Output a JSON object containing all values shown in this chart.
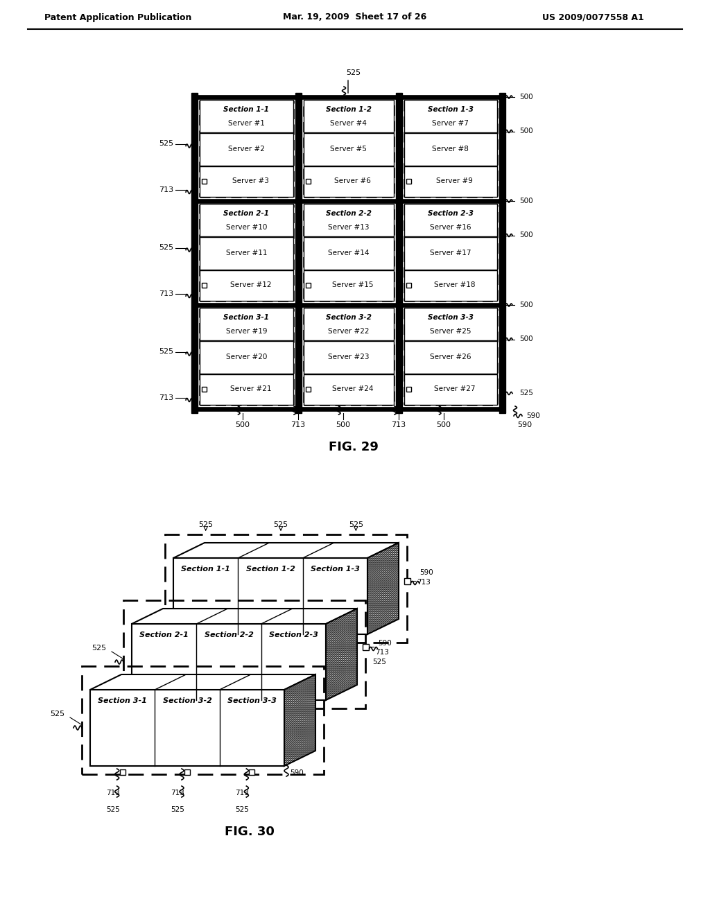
{
  "header_left": "Patent Application Publication",
  "header_mid": "Mar. 19, 2009  Sheet 17 of 26",
  "header_right": "US 2009/0077558 A1",
  "fig29_caption": "FIG. 29",
  "fig30_caption": "FIG. 30",
  "bg_color": "#ffffff",
  "fig29": {
    "sections": [
      {
        "name": "Section 1-1",
        "servers": [
          "Server #1",
          "Server #2",
          "Server #3"
        ],
        "col": 0,
        "row": 0
      },
      {
        "name": "Section 1-2",
        "servers": [
          "Server #4",
          "Server #5",
          "Server #6"
        ],
        "col": 1,
        "row": 0
      },
      {
        "name": "Section 1-3",
        "servers": [
          "Server #7",
          "Server #8",
          "Server #9"
        ],
        "col": 2,
        "row": 0
      },
      {
        "name": "Section 2-1",
        "servers": [
          "Server #10",
          "Server #11",
          "Server #12"
        ],
        "col": 0,
        "row": 1
      },
      {
        "name": "Section 2-2",
        "servers": [
          "Server #13",
          "Server #14",
          "Server #15"
        ],
        "col": 1,
        "row": 1
      },
      {
        "name": "Section 2-3",
        "servers": [
          "Server #16",
          "Server #17",
          "Server #18"
        ],
        "col": 2,
        "row": 1
      },
      {
        "name": "Section 3-1",
        "servers": [
          "Server #19",
          "Server #20",
          "Server #21"
        ],
        "col": 0,
        "row": 2
      },
      {
        "name": "Section 3-2",
        "servers": [
          "Server #22",
          "Server #23",
          "Server #24"
        ],
        "col": 1,
        "row": 2
      },
      {
        "name": "Section 3-3",
        "servers": [
          "Server #25",
          "Server #26",
          "Server #27"
        ],
        "col": 2,
        "row": 2
      }
    ]
  },
  "fig30": {
    "row_labels": [
      [
        "Section 1-1",
        "Section 1-2",
        "Section 1-3"
      ],
      [
        "Section 2-1",
        "Section 2-2",
        "Section 2-3"
      ],
      [
        "Section 3-1",
        "Section 3-2",
        "Section 3-3"
      ]
    ]
  }
}
